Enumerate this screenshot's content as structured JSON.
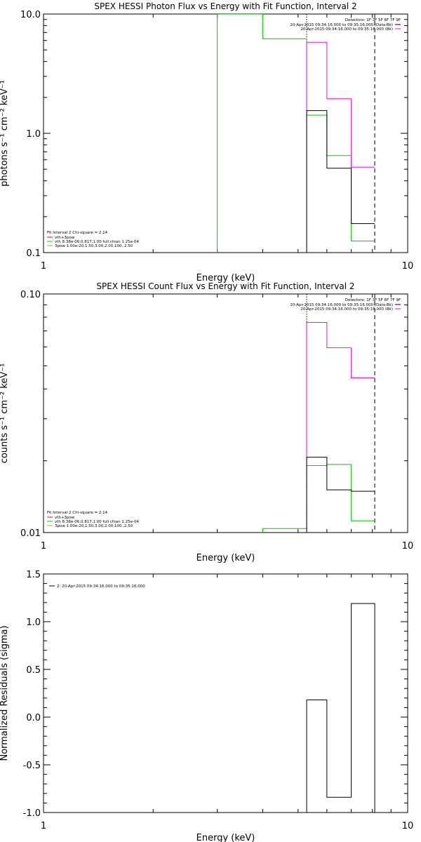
{
  "chart_data": [
    {
      "type": "line",
      "title": "SPEX HESSI Photon Flux vs Energy with Fit Function, Interval 2",
      "xlabel": "Energy (keV)",
      "ylabel": "photons s⁻¹ cm⁻² keV⁻¹",
      "xscale": "log",
      "yscale": "log",
      "xlim": [
        1,
        10
      ],
      "ylim": [
        0.1,
        10
      ],
      "x_ticks": [
        {
          "v": 1,
          "label": "1"
        },
        {
          "v": 10,
          "label": "10"
        }
      ],
      "y_ticks": [
        {
          "v": 0.1,
          "label": "0.1"
        },
        {
          "v": 1,
          "label": "1.0"
        },
        {
          "v": 10,
          "label": "10.0"
        }
      ],
      "legend_right": {
        "header": "Detectors: 1F 3F 5F 6F 7F 9F",
        "entries": [
          {
            "label": "20-Apr-2015 09:34:16.000 to 09:35:16.000 (Data-Bk)",
            "color": "#000000"
          },
          {
            "label": "20-Apr-2015 09:34:16.000 to 09:35:16.000 (Bk)",
            "color": "#ff00ff"
          }
        ]
      },
      "legend_left": {
        "header": "Fit Interval 2   Chi-square = 2.14",
        "entries": [
          {
            "label": "vth+3pow",
            "color": "#ff0000"
          },
          {
            "label": "vth 8.38e-06,0.817,1.00  full chian 1.25e-04",
            "color": "#00cc00"
          },
          {
            "label": "3pow 1.00e-20,1.50,3.00,2.00,100.,2.50",
            "color": "#ccaa00"
          }
        ]
      },
      "vlines": [
        {
          "x": 5.28,
          "style": "dotted"
        },
        {
          "x": 8.12,
          "style": "dashed"
        }
      ],
      "series": [
        {
          "color": "#00cc00",
          "x": [
            3.0,
            4.0,
            4.0,
            5.28,
            5.28,
            6.0,
            6.0,
            7.0,
            7.0,
            8.12
          ],
          "y": [
            10,
            10,
            6.2,
            6.2,
            1.42,
            1.42,
            0.65,
            0.65,
            0.125,
            0.125
          ],
          "pre_vertical": true
        },
        {
          "color": "#ff00ff",
          "x": [
            5.28,
            5.28,
            6.0,
            6.0,
            7.0,
            7.0,
            8.12
          ],
          "y": [
            0.1,
            5.8,
            5.8,
            1.95,
            1.95,
            0.52,
            0.52
          ]
        },
        {
          "color": "#000000",
          "x": [
            5.28,
            5.28,
            6.0,
            6.0,
            7.0,
            7.0,
            8.12
          ],
          "y": [
            0.1,
            1.55,
            1.55,
            0.51,
            0.51,
            0.175,
            0.175
          ]
        }
      ]
    },
    {
      "type": "line",
      "title": "SPEX HESSI Count Flux vs Energy with Fit Function, Interval 2",
      "xlabel": "Energy (keV)",
      "ylabel": "counts s⁻¹ cm⁻² keV⁻¹",
      "xscale": "log",
      "yscale": "log",
      "xlim": [
        1,
        10
      ],
      "ylim": [
        0.01,
        0.1
      ],
      "x_ticks": [
        {
          "v": 1,
          "label": "1"
        },
        {
          "v": 10,
          "label": "10"
        }
      ],
      "y_ticks": [
        {
          "v": 0.01,
          "label": "0.01"
        },
        {
          "v": 0.1,
          "label": "0.10"
        }
      ],
      "legend_right": {
        "header": "Detectors: 1F 3F 5F 6F 7F 9F",
        "entries": [
          {
            "label": "20-Apr-2015 09:34:16.000 to 09:35:16.000 (Data-Bk)",
            "color": "#000000"
          },
          {
            "label": "20-Apr-2015 09:34:16.000 to 09:35:16.000 (Bk)",
            "color": "#ff00ff"
          }
        ]
      },
      "legend_left": {
        "header": "Fit Interval 2   Chi-square = 2.14",
        "entries": [
          {
            "label": "vth+3pow",
            "color": "#ff0000"
          },
          {
            "label": "vth 8.38e-06,0.817,1.00  full chian 1.25e-04",
            "color": "#00cc00"
          },
          {
            "label": "3pow 1.00e-20,1.50,3.00,2.00,100.,2.50",
            "color": "#ccaa00"
          }
        ]
      },
      "vlines": [
        {
          "x": 5.28,
          "style": "dotted"
        },
        {
          "x": 8.12,
          "style": "dashed"
        }
      ],
      "series": [
        {
          "color": "#00cc00",
          "x": [
            4.0,
            5.28,
            5.28,
            6.0,
            6.0,
            7.0,
            7.0,
            8.12
          ],
          "y": [
            0.0104,
            0.0104,
            0.0191,
            0.0191,
            0.0193,
            0.0193,
            0.0112,
            0.0112
          ],
          "pre_vertical": true
        },
        {
          "color": "#ff00ff",
          "x": [
            5.28,
            5.28,
            6.0,
            6.0,
            7.0,
            7.0,
            8.12
          ],
          "y": [
            0.01,
            0.076,
            0.076,
            0.0595,
            0.0595,
            0.0445,
            0.0445
          ]
        },
        {
          "color": "#000000",
          "x": [
            5.28,
            5.28,
            6.0,
            6.0,
            7.0,
            7.0,
            8.12
          ],
          "y": [
            0.01,
            0.0207,
            0.0207,
            0.0151,
            0.0151,
            0.0149,
            0.0149
          ]
        }
      ]
    },
    {
      "type": "line",
      "title": "",
      "xlabel": "Energy (keV)",
      "ylabel": "Normalized Residuals (sigma)",
      "xscale": "log",
      "yscale": "linear",
      "xlim": [
        1,
        10
      ],
      "ylim": [
        -1.0,
        1.5
      ],
      "x_ticks": [
        {
          "v": 1,
          "label": "1"
        },
        {
          "v": 10,
          "label": "10"
        }
      ],
      "y_ticks": [
        {
          "v": -1.0,
          "label": "-1.0"
        },
        {
          "v": -0.5,
          "label": "-0.5"
        },
        {
          "v": 0.0,
          "label": "0.0"
        },
        {
          "v": 0.5,
          "label": "0.5"
        },
        {
          "v": 1.0,
          "label": "1.0"
        },
        {
          "v": 1.5,
          "label": "1.5"
        }
      ],
      "legend_left_top": {
        "entries": [
          {
            "label": "2: 20-Apr-2015 09:34:16.000 to 09:35:16.000",
            "color": "#000000"
          }
        ]
      },
      "series": [
        {
          "color": "#000000",
          "x": [
            5.28,
            5.28,
            6.0,
            6.0,
            7.0,
            7.0,
            8.12,
            8.12
          ],
          "y": [
            -1.0,
            0.18,
            0.18,
            -0.84,
            -0.84,
            1.19,
            1.19,
            -1.0
          ]
        }
      ]
    }
  ]
}
